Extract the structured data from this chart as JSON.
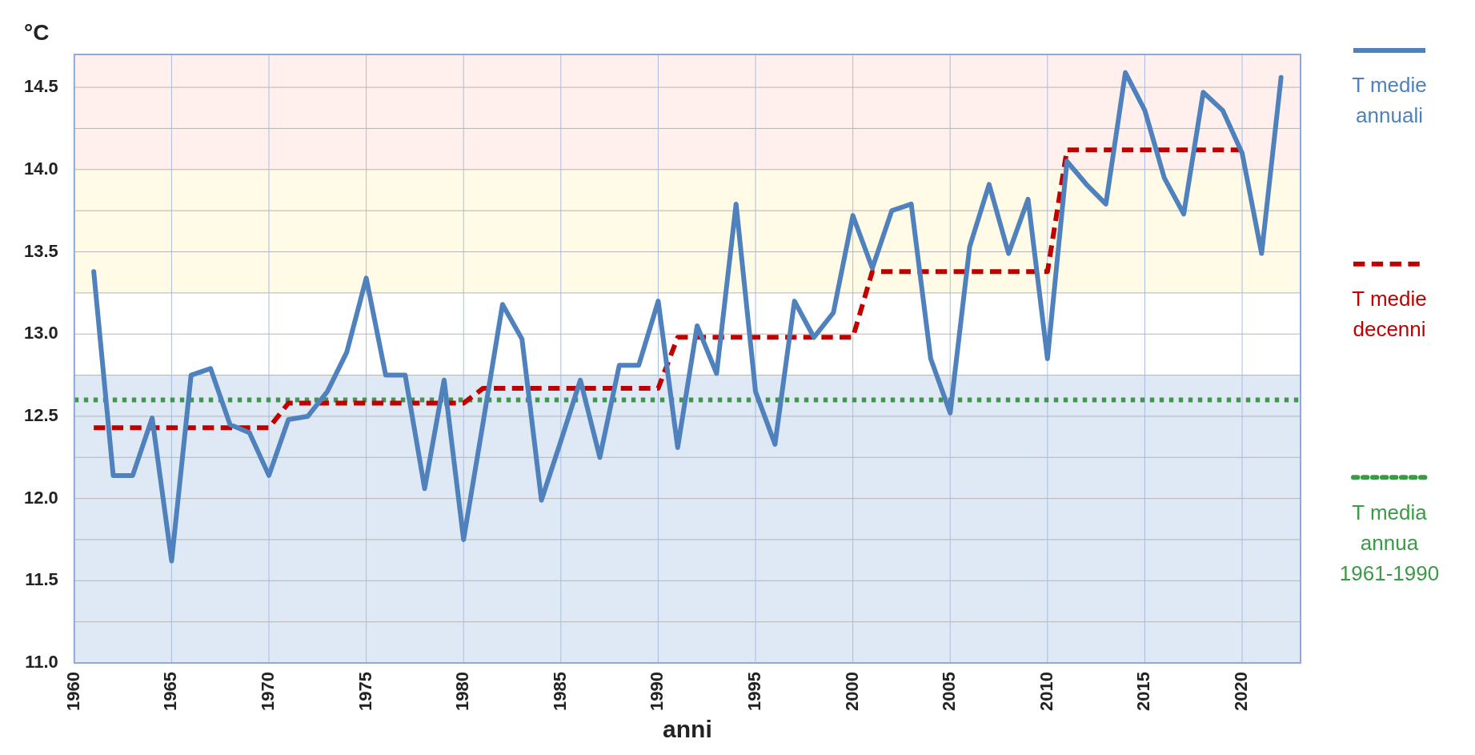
{
  "chart_data": {
    "type": "line",
    "xlabel": "anni",
    "ylabel": "°C",
    "xlim": [
      1960,
      2023
    ],
    "xticks": [
      1960,
      1965,
      1970,
      1975,
      1980,
      1985,
      1990,
      1995,
      2000,
      2005,
      2010,
      2015,
      2020
    ],
    "ylim": [
      11,
      14.7
    ],
    "yticks": [
      "11.0",
      {
        "value": 11.25,
        "label": null
      },
      {
        "value": 11.5,
        "label": "11.5"
      },
      {
        "value": 11.75,
        "label": null
      },
      {
        "value": 12,
        "label": "12.0"
      },
      {
        "value": 12.25,
        "label": null
      },
      {
        "value": 12.5,
        "label": "12.5"
      },
      {
        "value": 12.75,
        "label": null
      },
      {
        "value": 13,
        "label": "13.0"
      },
      {
        "value": 13.25,
        "label": null
      },
      {
        "value": 13.5,
        "label": "13.5"
      },
      {
        "value": 13.75,
        "label": null
      },
      {
        "value": 14,
        "label": "14.0"
      },
      {
        "value": 14.25,
        "label": null
      },
      {
        "value": 14.5,
        "label": "14.5"
      }
    ],
    "grid": true,
    "legend": "right",
    "marker": "none",
    "series": [
      {
        "name": "T medie annuali",
        "color": "#4f81bd",
        "line_style": "solid",
        "x": [
          1961,
          1962,
          1963,
          1964,
          1965,
          1966,
          1967,
          1968,
          1969,
          1970,
          1971,
          1972,
          1973,
          1974,
          1975,
          1976,
          1977,
          1978,
          1979,
          1980,
          1981,
          1982,
          1983,
          1984,
          1985,
          1986,
          1987,
          1988,
          1989,
          1990,
          1991,
          1992,
          1993,
          1994,
          1995,
          1996,
          1997,
          1998,
          1999,
          2000,
          2001,
          2002,
          2003,
          2004,
          2005,
          2006,
          2007,
          2008,
          2009,
          2010,
          2011,
          2012,
          2013,
          2014,
          2015,
          2016,
          2017,
          2018,
          2019,
          2020,
          2021,
          2022
        ],
        "values": [
          13.38,
          12.14,
          12.14,
          12.49,
          11.62,
          12.75,
          12.79,
          12.45,
          12.4,
          12.14,
          12.48,
          12.5,
          12.65,
          12.89,
          13.34,
          12.75,
          12.75,
          12.06,
          12.72,
          11.75,
          12.46,
          13.18,
          12.97,
          11.99,
          12.35,
          12.72,
          12.25,
          12.81,
          12.81,
          13.2,
          12.31,
          13.05,
          12.76,
          13.79,
          12.65,
          12.33,
          13.2,
          12.98,
          13.13,
          13.72,
          13.4,
          13.75,
          13.79,
          12.85,
          12.52,
          13.53,
          13.91,
          13.49,
          13.82,
          12.85,
          14.05,
          13.91,
          13.79,
          14.59,
          14.36,
          13.95,
          13.73,
          14.47,
          14.36,
          14.1,
          13.49,
          14.56
        ]
      },
      {
        "name": "T medie decenni",
        "color": "#c00000",
        "line_style": "dashed",
        "x": [
          1961,
          1962,
          1963,
          1964,
          1965,
          1966,
          1967,
          1968,
          1969,
          1970,
          1971,
          1972,
          1973,
          1974,
          1975,
          1976,
          1977,
          1978,
          1979,
          1980,
          1981,
          1982,
          1983,
          1984,
          1985,
          1986,
          1987,
          1988,
          1989,
          1990,
          1991,
          1992,
          1993,
          1994,
          1995,
          1996,
          1997,
          1998,
          1999,
          2000,
          2001,
          2002,
          2003,
          2004,
          2005,
          2006,
          2007,
          2008,
          2009,
          2010,
          2011,
          2012,
          2013,
          2014,
          2015,
          2016,
          2017,
          2018,
          2019,
          2020
        ],
        "values": [
          12.43,
          12.43,
          12.43,
          12.43,
          12.43,
          12.43,
          12.43,
          12.43,
          12.43,
          12.43,
          12.58,
          12.58,
          12.58,
          12.58,
          12.58,
          12.58,
          12.58,
          12.58,
          12.58,
          12.58,
          12.67,
          12.67,
          12.67,
          12.67,
          12.67,
          12.67,
          12.67,
          12.67,
          12.67,
          12.67,
          12.98,
          12.98,
          12.98,
          12.98,
          12.98,
          12.98,
          12.98,
          12.98,
          12.98,
          12.98,
          13.38,
          13.38,
          13.38,
          13.38,
          13.38,
          13.38,
          13.38,
          13.38,
          13.38,
          13.38,
          14.12,
          14.12,
          14.12,
          14.12,
          14.12,
          14.12,
          14.12,
          14.12,
          14.12,
          14.12
        ]
      }
    ],
    "ref_lines": [
      {
        "axis": "y",
        "value": 12.6,
        "label": "T media annua 1961-1990",
        "color": "#3a9a45",
        "line_style": "dotted"
      }
    ],
    "bands": [
      {
        "axis": "y",
        "from": 11,
        "to": 12.75,
        "color": "#dfe8f5"
      },
      {
        "axis": "y",
        "from": 13.25,
        "to": 14,
        "color": "#fffbe6"
      },
      {
        "axis": "y",
        "from": 14,
        "to": 14.7,
        "color": "#fff0ee"
      }
    ]
  }
}
